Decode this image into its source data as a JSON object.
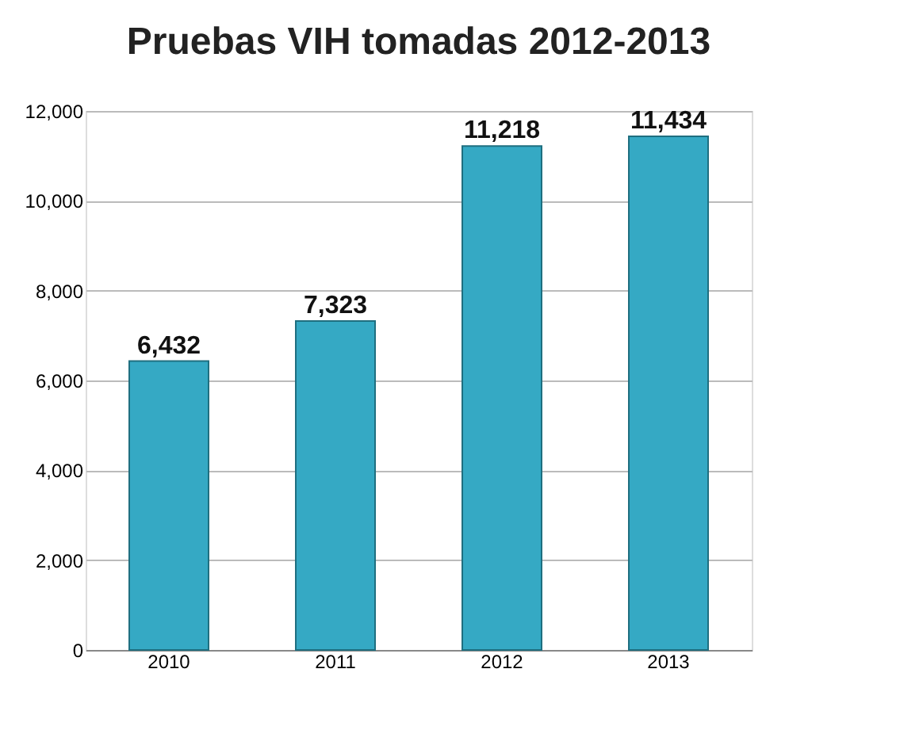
{
  "chart_data": {
    "type": "bar",
    "title": "Pruebas VIH tomadas 2012-2013",
    "categories": [
      "2010",
      "2011",
      "2012",
      "2013"
    ],
    "values": [
      6432,
      7323,
      11218,
      11434
    ],
    "value_labels": [
      "6,432",
      "7,323",
      "11,218",
      "11,434"
    ],
    "color": "#35a9c4",
    "ylim": [
      0,
      12000
    ],
    "yticks": [
      0,
      {
        "value": 2000,
        "label": "2,000"
      },
      {
        "value": 4000,
        "label": "4,000"
      },
      {
        "value": 6000,
        "label": "6,000"
      },
      {
        "value": 8000,
        "label": "8,000"
      },
      {
        "value": 10000,
        "label": "10,000"
      },
      {
        "value": 12000,
        "label": "12,000"
      }
    ],
    "grid": "y"
  }
}
